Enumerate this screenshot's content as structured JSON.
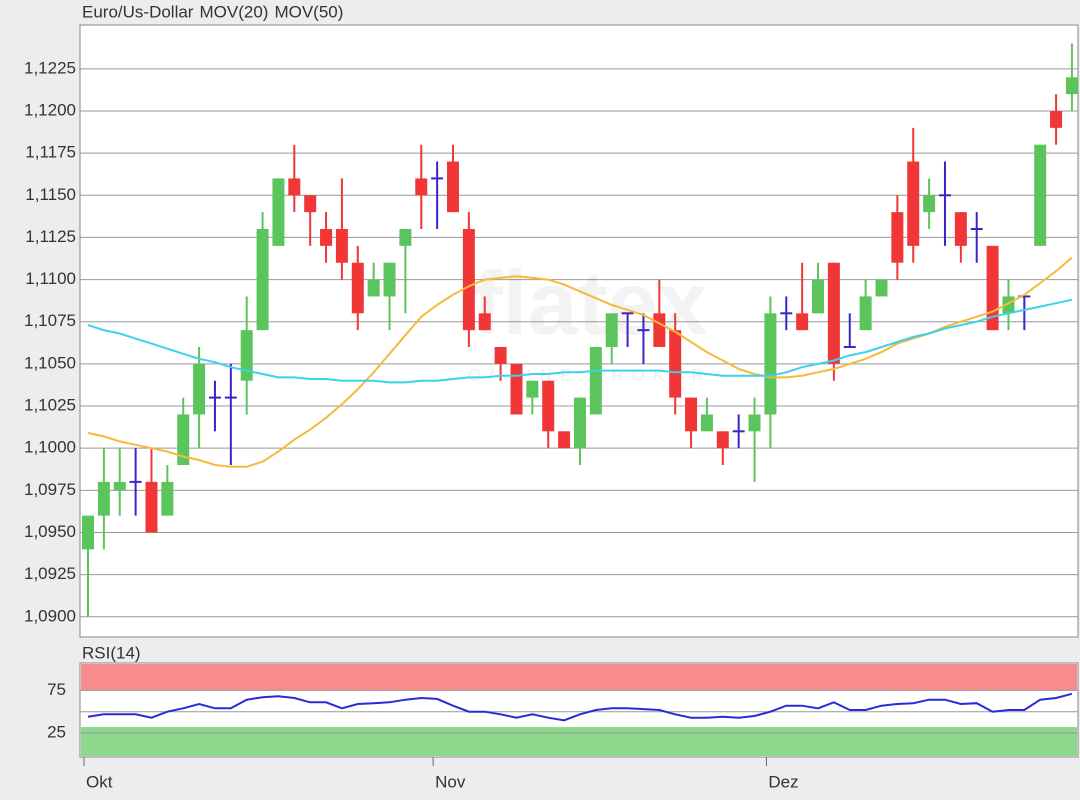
{
  "chart_data": [
    {
      "type": "candlestick",
      "categories": [
        "Okt",
        null,
        null,
        null,
        null,
        null,
        null,
        null,
        null,
        null,
        null,
        null,
        null,
        null,
        null,
        null,
        null,
        null,
        null,
        null,
        null,
        null,
        "Nov",
        null,
        null,
        null,
        null,
        null,
        null,
        null,
        null,
        null,
        null,
        null,
        null,
        null,
        null,
        null,
        null,
        null,
        null,
        null,
        null,
        "Dez",
        null,
        null,
        null,
        null,
        null,
        null,
        null,
        null,
        null,
        null,
        null,
        null,
        null,
        null,
        null,
        null,
        null,
        null,
        null
      ],
      "ylim": [
        1.0888,
        1.1251
      ],
      "yticks": [
        {
          "value": 1.09,
          "label": "1,0900"
        },
        {
          "value": 1.0925,
          "label": "1,0925"
        },
        {
          "value": 1.095,
          "label": "1,0950"
        },
        {
          "value": 1.0975,
          "label": "1,0975"
        },
        {
          "value": 1.1,
          "label": "1,1000"
        },
        {
          "value": 1.1025,
          "label": "1,1025"
        },
        {
          "value": 1.105,
          "label": "1,1050"
        },
        {
          "value": 1.1075,
          "label": "1,1075"
        },
        {
          "value": 1.11,
          "label": "1,1100"
        },
        {
          "value": 1.1125,
          "label": "1,1125"
        },
        {
          "value": 1.115,
          "label": "1,1150"
        },
        {
          "value": 1.1175,
          "label": "1,1175"
        },
        {
          "value": 1.12,
          "label": "1,1200"
        },
        {
          "value": 1.1225,
          "label": "1,1225"
        }
      ],
      "grid": true,
      "watermark": "flatex",
      "watermark_subtitle": "ONLINE BROKER",
      "series": [
        {
          "name": "Euro/Us-Dollar",
          "color": "#f0502a",
          "up_color": "#5cc45c",
          "down_color": "#f03636",
          "doji_color": "#3a24c8",
          "open": [
            1.094,
            1.096,
            1.0975,
            1.098,
            1.098,
            1.096,
            1.099,
            1.102,
            1.103,
            1.103,
            1.104,
            1.107,
            1.112,
            1.116,
            1.115,
            1.113,
            1.113,
            1.111,
            1.109,
            1.109,
            1.112,
            1.116,
            1.116,
            1.117,
            1.113,
            1.108,
            1.106,
            1.105,
            1.103,
            1.104,
            1.101,
            1.1,
            1.102,
            1.106,
            1.108,
            1.107,
            1.108,
            1.107,
            1.103,
            1.101,
            1.101,
            1.101,
            1.101,
            1.102,
            1.108,
            1.108,
            1.108,
            1.111,
            1.106,
            1.107,
            1.109,
            1.114,
            1.117,
            1.114,
            1.115,
            1.114,
            1.113,
            1.112,
            1.108,
            1.109,
            1.112,
            1.12,
            1.121
          ],
          "high": [
            1.096,
            1.1,
            1.1,
            1.1,
            1.1,
            1.099,
            1.103,
            1.106,
            1.104,
            1.105,
            1.109,
            1.114,
            1.116,
            1.118,
            1.115,
            1.114,
            1.116,
            1.112,
            1.111,
            1.111,
            1.113,
            1.118,
            1.117,
            1.118,
            1.114,
            1.109,
            1.106,
            1.105,
            1.104,
            1.104,
            1.101,
            1.103,
            1.106,
            1.108,
            1.108,
            1.108,
            1.11,
            1.108,
            1.103,
            1.103,
            1.101,
            1.102,
            1.103,
            1.109,
            1.109,
            1.111,
            1.111,
            1.111,
            1.108,
            1.11,
            1.11,
            1.115,
            1.119,
            1.116,
            1.117,
            1.114,
            1.114,
            1.112,
            1.11,
            1.109,
            1.118,
            1.121,
            1.124
          ],
          "low": [
            1.09,
            1.094,
            1.096,
            1.096,
            1.095,
            1.096,
            1.099,
            1.1,
            1.101,
            1.099,
            1.102,
            1.107,
            1.112,
            1.114,
            1.112,
            1.111,
            1.11,
            1.107,
            1.109,
            1.107,
            1.108,
            1.113,
            1.113,
            1.114,
            1.106,
            1.107,
            1.104,
            1.102,
            1.102,
            1.1,
            1.1,
            1.099,
            1.102,
            1.105,
            1.106,
            1.105,
            1.106,
            1.102,
            1.1,
            1.101,
            1.099,
            1.1,
            1.098,
            1.1,
            1.107,
            1.107,
            1.108,
            1.104,
            1.106,
            1.107,
            1.109,
            1.11,
            1.111,
            1.113,
            1.112,
            1.111,
            1.111,
            1.107,
            1.107,
            1.107,
            1.112,
            1.118,
            1.12
          ],
          "close": [
            1.096,
            1.098,
            1.098,
            1.098,
            1.095,
            1.098,
            1.102,
            1.105,
            1.103,
            1.103,
            1.107,
            1.113,
            1.116,
            1.115,
            1.114,
            1.112,
            1.111,
            1.108,
            1.11,
            1.111,
            1.113,
            1.115,
            1.116,
            1.114,
            1.107,
            1.107,
            1.105,
            1.102,
            1.104,
            1.101,
            1.1,
            1.103,
            1.106,
            1.108,
            1.108,
            1.107,
            1.106,
            1.103,
            1.101,
            1.102,
            1.1,
            1.101,
            1.102,
            1.108,
            1.108,
            1.107,
            1.11,
            1.105,
            1.106,
            1.109,
            1.11,
            1.111,
            1.112,
            1.115,
            1.115,
            1.112,
            1.113,
            1.107,
            1.109,
            1.109,
            1.118,
            1.119,
            1.122
          ]
        },
        {
          "name": "MOV(20)",
          "type": "line",
          "color": "#f8b83c",
          "values": [
            1.1009,
            1.1007,
            1.1004,
            1.1002,
            1.1,
            1.0998,
            1.0995,
            1.0993,
            1.099,
            1.0989,
            1.0989,
            1.0992,
            1.0998,
            1.1005,
            1.1011,
            1.1018,
            1.1026,
            1.1035,
            1.1045,
            1.1056,
            1.1067,
            1.1078,
            1.1085,
            1.1091,
            1.1096,
            1.11,
            1.1101,
            1.1102,
            1.1101,
            1.11,
            1.1097,
            1.1093,
            1.1089,
            1.1085,
            1.1082,
            1.1079,
            1.1074,
            1.1069,
            1.1063,
            1.1057,
            1.1052,
            1.1047,
            1.1044,
            1.1042,
            1.1042,
            1.1043,
            1.1045,
            1.1047,
            1.105,
            1.1053,
            1.1057,
            1.1062,
            1.1065,
            1.1068,
            1.1072,
            1.1075,
            1.1078,
            1.1081,
            1.1086,
            1.1091,
            1.1098,
            1.1105,
            1.1113
          ]
        },
        {
          "name": "MOV(50)",
          "type": "line",
          "color": "#3cd2ec",
          "values": [
            1.1073,
            1.107,
            1.1068,
            1.1065,
            1.1062,
            1.1059,
            1.1056,
            1.1053,
            1.1051,
            1.1048,
            1.1046,
            1.1044,
            1.1042,
            1.1042,
            1.1041,
            1.1041,
            1.104,
            1.104,
            1.104,
            1.1039,
            1.1039,
            1.104,
            1.104,
            1.1041,
            1.1042,
            1.1042,
            1.1043,
            1.1043,
            1.1044,
            1.1044,
            1.1045,
            1.1045,
            1.1046,
            1.1046,
            1.1046,
            1.1046,
            1.1046,
            1.1045,
            1.1045,
            1.1044,
            1.1043,
            1.1043,
            1.1043,
            1.1043,
            1.1045,
            1.1048,
            1.105,
            1.1052,
            1.1055,
            1.1057,
            1.106,
            1.1063,
            1.1066,
            1.1068,
            1.1071,
            1.1073,
            1.1075,
            1.1078,
            1.108,
            1.1082,
            1.1084,
            1.1086,
            1.1088
          ]
        }
      ]
    },
    {
      "type": "line",
      "ylim": [
        -3,
        107
      ],
      "yticks": [
        25,
        75
      ],
      "upper_band_color": "#f88c8c",
      "lower_band_color": "#8cd88c",
      "series": [
        {
          "name": "RSI(14)",
          "color": "#2a2ad8",
          "values": [
            44,
            47,
            47,
            47,
            43,
            50,
            54,
            59,
            54,
            54,
            64,
            67,
            68,
            66,
            61,
            61,
            54,
            59,
            60,
            61,
            64,
            66,
            65,
            57,
            50,
            50,
            47,
            43,
            47,
            43,
            40,
            47,
            52,
            54,
            54,
            53,
            52,
            47,
            43,
            43,
            44,
            43,
            45,
            50,
            57,
            57,
            54,
            61,
            52,
            52,
            57,
            59,
            60,
            64,
            64,
            59,
            60,
            50,
            52,
            52,
            64,
            66,
            71
          ]
        }
      ]
    }
  ]
}
